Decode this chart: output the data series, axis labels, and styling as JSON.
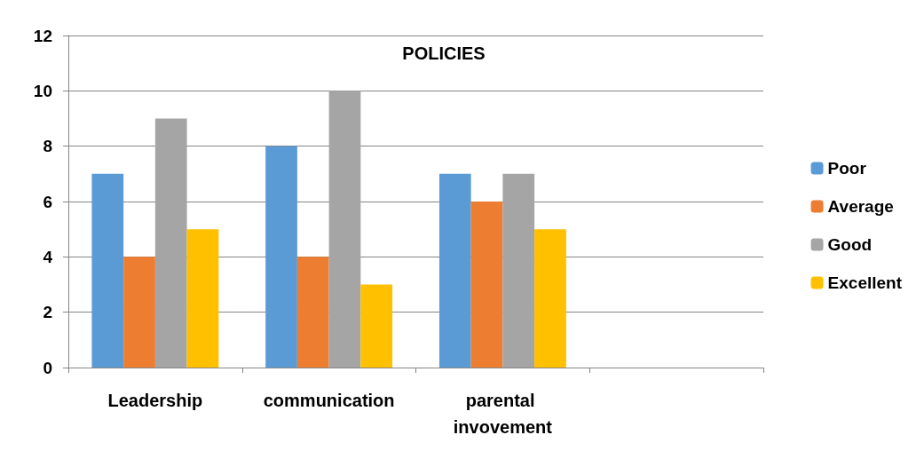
{
  "chart_data": {
    "type": "bar",
    "title": "POLICIES",
    "categories": [
      "Leadership",
      "communication",
      "parental invovement",
      null
    ],
    "series": [
      {
        "name": "Poor",
        "color": "#5b9bd5",
        "values": [
          7,
          8,
          7,
          null
        ]
      },
      {
        "name": "Average",
        "color": "#ed7d31",
        "values": [
          4,
          4,
          6,
          null
        ]
      },
      {
        "name": "Good",
        "color": "#a5a5a5",
        "values": [
          9,
          10,
          7,
          null
        ]
      },
      {
        "name": "Excellent",
        "color": "#ffc000",
        "values": [
          5,
          3,
          5,
          null
        ]
      }
    ],
    "ylim": [
      0,
      12
    ],
    "yticks": [
      0,
      2,
      4,
      6,
      8,
      10,
      12
    ],
    "grid": "y",
    "legend": "right"
  }
}
